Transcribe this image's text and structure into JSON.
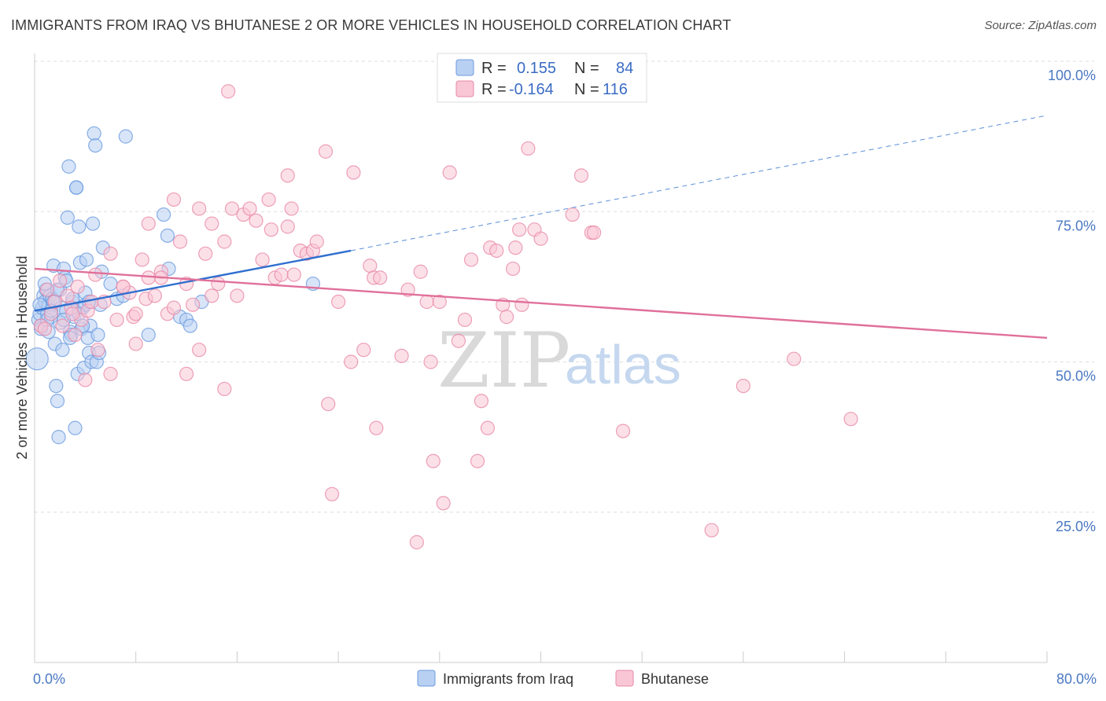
{
  "title": "IMMIGRANTS FROM IRAQ VS BHUTANESE 2 OR MORE VEHICLES IN HOUSEHOLD CORRELATION CHART",
  "source": "Source: ZipAtlas.com",
  "watermark": {
    "zip": "ZIP",
    "atlas": "atlas"
  },
  "legend": {
    "r_label": "R =",
    "n_label": "N =",
    "rows": [
      {
        "r": "0.155",
        "n": "84",
        "fill": "#b8d0f2",
        "stroke": "#6b9be0"
      },
      {
        "r": "-0.164",
        "n": "116",
        "fill": "#f9c6d6",
        "stroke": "#e88aa8"
      }
    ]
  },
  "chart_data": {
    "type": "scatter",
    "title": "IMMIGRANTS FROM IRAQ VS BHUTANESE 2 OR MORE VEHICLES IN HOUSEHOLD CORRELATION CHART",
    "xlabel": "",
    "ylabel": "2 or more Vehicles in Household",
    "xlim": [
      0,
      80
    ],
    "ylim": [
      0,
      105
    ],
    "x_tick_labels": [
      {
        "value": 0,
        "label": "0.0%"
      },
      {
        "value": 80,
        "label": "80.0%"
      }
    ],
    "y_tick_labels": [
      {
        "value": 25,
        "label": "25.0%"
      },
      {
        "value": 50,
        "label": "50.0%"
      },
      {
        "value": 75,
        "label": "75.0%"
      },
      {
        "value": 100,
        "label": "100.0%"
      }
    ],
    "series": [
      {
        "name": "Immigrants from Iraq",
        "color": "#6b9be0",
        "fill": "#b8d0f2",
        "points": [
          [
            0.2,
            50.5
          ],
          [
            0.3,
            57
          ],
          [
            0.4,
            58
          ],
          [
            0.5,
            56
          ],
          [
            0.6,
            59
          ],
          [
            0.7,
            61
          ],
          [
            0.8,
            60
          ],
          [
            0.9,
            62
          ],
          [
            1.0,
            58
          ],
          [
            1.1,
            59.5
          ],
          [
            1.2,
            61
          ],
          [
            1.3,
            57.5
          ],
          [
            1.4,
            60.5
          ],
          [
            1.5,
            66
          ],
          [
            1.6,
            53
          ],
          [
            1.7,
            46
          ],
          [
            1.8,
            43.5
          ],
          [
            1.9,
            37.5
          ],
          [
            2.0,
            62
          ],
          [
            2.1,
            59
          ],
          [
            2.2,
            52
          ],
          [
            2.3,
            65.5
          ],
          [
            2.4,
            64
          ],
          [
            2.5,
            63.5
          ],
          [
            2.6,
            74
          ],
          [
            2.7,
            82.5
          ],
          [
            2.8,
            55
          ],
          [
            2.9,
            54.5
          ],
          [
            3.0,
            60
          ],
          [
            3.1,
            57.5
          ],
          [
            3.2,
            39
          ],
          [
            3.3,
            79
          ],
          [
            3.4,
            48
          ],
          [
            3.5,
            72.5
          ],
          [
            3.6,
            66.5
          ],
          [
            3.7,
            55.5
          ],
          [
            3.8,
            59
          ],
          [
            3.9,
            49
          ],
          [
            4.0,
            59.5
          ],
          [
            4.1,
            67
          ],
          [
            4.2,
            54
          ],
          [
            4.3,
            51.5
          ],
          [
            4.4,
            56
          ],
          [
            4.5,
            50
          ],
          [
            4.6,
            73
          ],
          [
            4.7,
            88
          ],
          [
            4.8,
            86
          ],
          [
            4.9,
            50
          ],
          [
            5.0,
            54.5
          ],
          [
            5.1,
            51.5
          ],
          [
            5.2,
            59.5
          ],
          [
            5.3,
            65
          ],
          [
            5.4,
            69
          ],
          [
            6.0,
            63
          ],
          [
            6.5,
            60.5
          ],
          [
            7.0,
            61
          ],
          [
            7.2,
            87.5
          ],
          [
            9.0,
            54.5
          ],
          [
            10.2,
            74.5
          ],
          [
            10.5,
            71
          ],
          [
            10.6,
            65.5
          ],
          [
            11.5,
            57.5
          ],
          [
            12.0,
            57
          ],
          [
            12.3,
            56
          ],
          [
            13.2,
            60
          ],
          [
            22.0,
            63
          ],
          [
            0.5,
            55.5
          ],
          [
            1.0,
            57
          ],
          [
            1.5,
            60
          ],
          [
            2.0,
            56.5
          ],
          [
            2.5,
            58.5
          ],
          [
            3.0,
            60.5
          ],
          [
            3.5,
            58
          ],
          [
            4.0,
            61.5
          ],
          [
            0.8,
            63
          ],
          [
            1.8,
            62
          ],
          [
            2.8,
            54
          ],
          [
            3.8,
            56
          ],
          [
            0.4,
            59.5
          ],
          [
            1.3,
            58.5
          ],
          [
            2.3,
            57
          ],
          [
            3.3,
            79
          ],
          [
            4.3,
            60
          ],
          [
            1.1,
            55
          ]
        ]
      },
      {
        "name": "Bhutanese",
        "color": "#e88aa8",
        "fill": "#f9c6d6",
        "points": [
          [
            0.5,
            56
          ],
          [
            0.8,
            55.5
          ],
          [
            1.0,
            62
          ],
          [
            1.3,
            58
          ],
          [
            1.6,
            60
          ],
          [
            2.0,
            63.5
          ],
          [
            2.2,
            56
          ],
          [
            2.6,
            61
          ],
          [
            2.9,
            59
          ],
          [
            3.2,
            54.5
          ],
          [
            3.4,
            62.5
          ],
          [
            3.7,
            57
          ],
          [
            4.2,
            58.5
          ],
          [
            4.5,
            60
          ],
          [
            4.8,
            64.5
          ],
          [
            5.5,
            60
          ],
          [
            6.0,
            68
          ],
          [
            6.5,
            57
          ],
          [
            7.0,
            62.5
          ],
          [
            7.5,
            61.5
          ],
          [
            7.8,
            57.5
          ],
          [
            8.0,
            53
          ],
          [
            8.5,
            67
          ],
          [
            8.8,
            60.5
          ],
          [
            9.0,
            73
          ],
          [
            9.5,
            61
          ],
          [
            10.0,
            65
          ],
          [
            10.5,
            58
          ],
          [
            11.0,
            77
          ],
          [
            11.5,
            70
          ],
          [
            12.0,
            63
          ],
          [
            12.5,
            59.5
          ],
          [
            13.0,
            75.5
          ],
          [
            13.5,
            68
          ],
          [
            14.0,
            73
          ],
          [
            14.5,
            63
          ],
          [
            15.0,
            70
          ],
          [
            15.3,
            95
          ],
          [
            15.6,
            75.5
          ],
          [
            16.0,
            61
          ],
          [
            16.5,
            74.5
          ],
          [
            17.0,
            75.5
          ],
          [
            17.5,
            73.5
          ],
          [
            18.0,
            67
          ],
          [
            18.5,
            77
          ],
          [
            18.7,
            72
          ],
          [
            19.0,
            64
          ],
          [
            19.5,
            64.5
          ],
          [
            20.0,
            72.5
          ],
          [
            20.3,
            75.5
          ],
          [
            20.5,
            64.5
          ],
          [
            21.0,
            68.5
          ],
          [
            21.5,
            68
          ],
          [
            22.0,
            68.5
          ],
          [
            22.3,
            70
          ],
          [
            23.0,
            85
          ],
          [
            23.2,
            43
          ],
          [
            23.5,
            28
          ],
          [
            24.0,
            60
          ],
          [
            25.0,
            50
          ],
          [
            25.2,
            81.5
          ],
          [
            26.5,
            66
          ],
          [
            26.8,
            64
          ],
          [
            27.0,
            39
          ],
          [
            27.3,
            64
          ],
          [
            29.5,
            62
          ],
          [
            30.2,
            20
          ],
          [
            30.5,
            65
          ],
          [
            31.0,
            60
          ],
          [
            31.3,
            50
          ],
          [
            31.5,
            33.5
          ],
          [
            32.0,
            60
          ],
          [
            32.3,
            26.5
          ],
          [
            32.8,
            81.5
          ],
          [
            33.5,
            53.5
          ],
          [
            34.0,
            57
          ],
          [
            34.5,
            67
          ],
          [
            35.0,
            33.5
          ],
          [
            35.3,
            43.5
          ],
          [
            35.8,
            39
          ],
          [
            36.0,
            69
          ],
          [
            36.5,
            68.5
          ],
          [
            37.0,
            59.5
          ],
          [
            37.3,
            57.5
          ],
          [
            37.8,
            65.5
          ],
          [
            38.0,
            69
          ],
          [
            38.3,
            72
          ],
          [
            38.5,
            59.5
          ],
          [
            39.5,
            72
          ],
          [
            40.0,
            70.5
          ],
          [
            42.5,
            74.5
          ],
          [
            43.2,
            81
          ],
          [
            44.0,
            71.5
          ],
          [
            44.2,
            71.5
          ],
          [
            46.5,
            38.5
          ],
          [
            56.0,
            46
          ],
          [
            64.5,
            40.5
          ],
          [
            53.5,
            22
          ],
          [
            60.0,
            50.5
          ],
          [
            39.0,
            85.5
          ],
          [
            20.0,
            81
          ],
          [
            29.0,
            51
          ],
          [
            26.0,
            52
          ],
          [
            10.0,
            64
          ],
          [
            15.0,
            45.5
          ],
          [
            12.0,
            48
          ],
          [
            9.0,
            64
          ],
          [
            7.0,
            62.5
          ],
          [
            5.0,
            52
          ],
          [
            3.0,
            58
          ],
          [
            4.0,
            47
          ],
          [
            6.0,
            48
          ],
          [
            8.0,
            58
          ],
          [
            11.0,
            59
          ],
          [
            13.0,
            52
          ],
          [
            14.0,
            61
          ]
        ]
      }
    ],
    "trendlines": [
      {
        "series": "Immigrants from Iraq",
        "x": [
          0,
          25
        ],
        "y": [
          58.5,
          68.5
        ],
        "style": "solid",
        "extended_x": [
          25,
          80
        ],
        "extended_y": [
          68.5,
          91
        ],
        "extended_style": "dashed"
      },
      {
        "series": "Bhutanese",
        "x": [
          0,
          80
        ],
        "y": [
          65.5,
          54
        ],
        "style": "solid"
      }
    ]
  },
  "bottom_legend": [
    {
      "label": "Immigrants from Iraq",
      "fill": "#b8d0f2",
      "stroke": "#6b9be0"
    },
    {
      "label": "Bhutanese",
      "fill": "#f9c6d6",
      "stroke": "#e88aa8"
    }
  ]
}
